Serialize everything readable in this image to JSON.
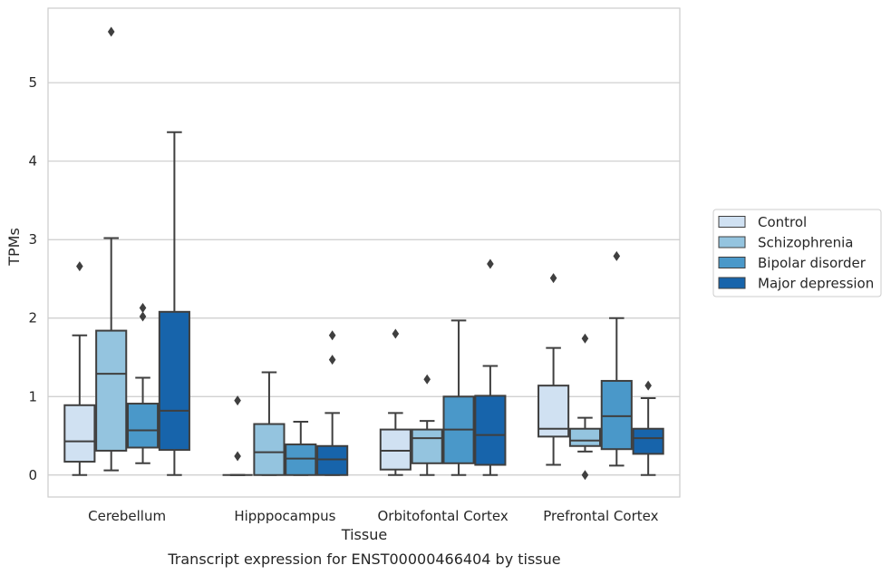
{
  "chart_data": {
    "type": "box",
    "title": "",
    "caption": "Transcript expression for ENST00000466404 by tissue",
    "xlabel": "Tissue",
    "ylabel": "TPMs",
    "ylim": [
      -0.28,
      5.95
    ],
    "yticks": [
      "0",
      "1",
      "2",
      "3",
      "4",
      "5"
    ],
    "grid": "horizontal",
    "legend_position": "right",
    "categories": [
      "Cerebellum",
      "Hipppocampus",
      "Orbitofontal Cortex",
      "Prefrontal Cortex"
    ],
    "series": [
      {
        "name": "Control",
        "color": "#d0e1f2",
        "boxes": [
          {
            "whislo": 0.0,
            "q1": 0.17,
            "med": 0.43,
            "q3": 0.89,
            "whishi": 1.78,
            "fliers": [
              2.66
            ]
          },
          {
            "whislo": 0.0,
            "q1": 0.0,
            "med": 0.0,
            "q3": 0.0,
            "whishi": 0.0,
            "fliers": [
              0.95,
              0.24
            ]
          },
          {
            "whislo": 0.0,
            "q1": 0.07,
            "med": 0.31,
            "q3": 0.58,
            "whishi": 0.79,
            "fliers": [
              1.8
            ]
          },
          {
            "whislo": 0.13,
            "q1": 0.49,
            "med": 0.59,
            "q3": 1.14,
            "whishi": 1.62,
            "fliers": [
              2.51
            ]
          }
        ]
      },
      {
        "name": "Schizophrenia",
        "color": "#94c4df",
        "boxes": [
          {
            "whislo": 0.06,
            "q1": 0.31,
            "med": 1.29,
            "q3": 1.84,
            "whishi": 3.02,
            "fliers": [
              5.65
            ]
          },
          {
            "whislo": 0.0,
            "q1": 0.0,
            "med": 0.29,
            "q3": 0.65,
            "whishi": 1.31,
            "fliers": []
          },
          {
            "whislo": 0.0,
            "q1": 0.15,
            "med": 0.47,
            "q3": 0.58,
            "whishi": 0.69,
            "fliers": [
              1.22
            ]
          },
          {
            "whislo": 0.3,
            "q1": 0.37,
            "med": 0.44,
            "q3": 0.59,
            "whishi": 0.73,
            "fliers": [
              1.74,
              0.0
            ]
          }
        ]
      },
      {
        "name": "Bipolar disorder",
        "color": "#4a98c9",
        "boxes": [
          {
            "whislo": 0.15,
            "q1": 0.35,
            "med": 0.57,
            "q3": 0.91,
            "whishi": 1.24,
            "fliers": [
              2.13,
              2.02
            ]
          },
          {
            "whislo": 0.0,
            "q1": 0.0,
            "med": 0.21,
            "q3": 0.39,
            "whishi": 0.68,
            "fliers": []
          },
          {
            "whislo": 0.0,
            "q1": 0.15,
            "med": 0.58,
            "q3": 1.0,
            "whishi": 1.97,
            "fliers": []
          },
          {
            "whislo": 0.12,
            "q1": 0.33,
            "med": 0.75,
            "q3": 1.2,
            "whishi": 2.0,
            "fliers": [
              2.79
            ]
          }
        ]
      },
      {
        "name": "Major depression",
        "color": "#1764ab",
        "boxes": [
          {
            "whislo": 0.0,
            "q1": 0.32,
            "med": 0.82,
            "q3": 2.08,
            "whishi": 4.37,
            "fliers": []
          },
          {
            "whislo": 0.0,
            "q1": 0.0,
            "med": 0.2,
            "q3": 0.37,
            "whishi": 0.79,
            "fliers": [
              1.78,
              1.47
            ]
          },
          {
            "whislo": 0.0,
            "q1": 0.13,
            "med": 0.51,
            "q3": 1.01,
            "whishi": 1.39,
            "fliers": [
              2.69
            ]
          },
          {
            "whislo": 0.0,
            "q1": 0.27,
            "med": 0.47,
            "q3": 0.59,
            "whishi": 0.98,
            "fliers": [
              1.14
            ]
          }
        ]
      }
    ]
  }
}
